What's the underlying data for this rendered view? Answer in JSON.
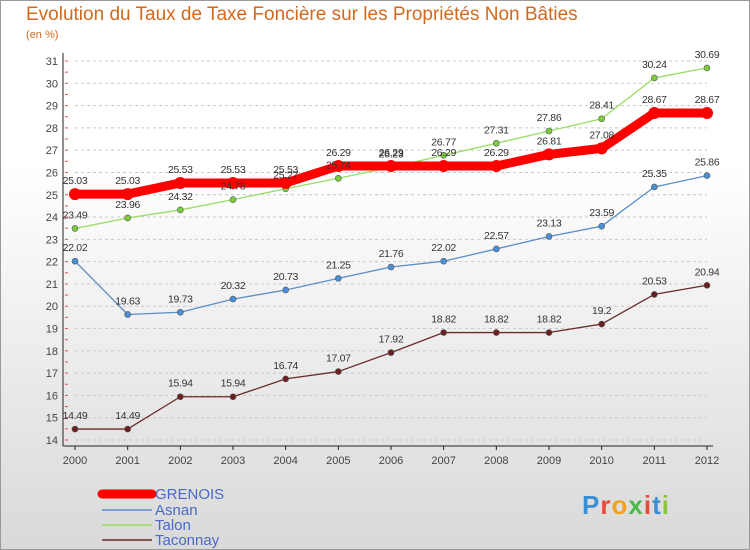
{
  "title": "Evolution du Taux de Taxe Foncière sur les Propriétés Non Bâties",
  "subtitle": "(en %)",
  "logo": {
    "text": "Proxiti",
    "colors": [
      "#3b8fd6",
      "#e84b3a",
      "#f2a21b",
      "#4cb848",
      "#e84b3a",
      "#3b8fd6",
      "#8cc63f"
    ]
  },
  "chart_data": {
    "type": "line",
    "title": "Evolution du Taux de Taxe Foncière sur les Propriétés Non Bâties",
    "ylabel": "(en %)",
    "x": [
      "2000",
      "2001",
      "2002",
      "2003",
      "2004",
      "2005",
      "2006",
      "2007",
      "2008",
      "2009",
      "2010",
      "2011",
      "2012"
    ],
    "ylim": [
      14,
      31
    ],
    "yticks": [
      14,
      15,
      16,
      17,
      18,
      19,
      20,
      21,
      22,
      23,
      24,
      25,
      26,
      27,
      28,
      29,
      30,
      31
    ],
    "grid": "horizontal dashed",
    "legend_position": "bottom-left",
    "series": [
      {
        "name": "GRENOIS",
        "color": "#ff0000",
        "width": 9,
        "values": [
          25.03,
          25.03,
          25.53,
          25.53,
          25.53,
          26.29,
          26.29,
          26.29,
          26.29,
          26.81,
          27.08,
          28.67,
          28.67
        ],
        "labels": [
          "25.03",
          "25.03",
          "25.53",
          "25.53",
          "25.53",
          "26.29",
          "26.29",
          "26.29",
          "26.29",
          "26.81",
          "27.08",
          "28.67",
          "28.67"
        ]
      },
      {
        "name": "Asnan",
        "color": "#5b8fc7",
        "marker": "#4a90d9",
        "width": 1.3,
        "values": [
          22.02,
          19.63,
          19.73,
          20.32,
          20.73,
          21.25,
          21.76,
          22.02,
          22.57,
          23.13,
          23.59,
          25.35,
          25.86
        ],
        "labels": [
          "22.02",
          "19.63",
          "19.73",
          "20.32",
          "20.73",
          "21.25",
          "21.76",
          "22.02",
          "22.57",
          "23.13",
          "23.59",
          "25.35",
          "25.86"
        ]
      },
      {
        "name": "Talon",
        "color": "#99dd66",
        "marker": "#7ccd3c",
        "width": 1.3,
        "values": [
          23.49,
          23.96,
          24.32,
          24.78,
          25.27,
          25.74,
          26.23,
          26.77,
          27.31,
          27.86,
          28.41,
          30.24,
          30.69
        ],
        "labels": [
          "23.49",
          "23.96",
          "24.32",
          "24.78",
          "25.27",
          "25.74",
          "26.23",
          "26.77",
          "27.31",
          "27.86",
          "28.41",
          "30.24",
          "30.69"
        ]
      },
      {
        "name": "Taconnay",
        "color": "#6b2b2b",
        "marker": "#6b1f1f",
        "width": 1.3,
        "values": [
          14.49,
          14.49,
          15.94,
          15.94,
          16.74,
          17.07,
          17.92,
          18.82,
          18.82,
          18.82,
          19.2,
          20.53,
          20.94
        ],
        "labels": [
          "14.49",
          "14.49",
          "15.94",
          "15.94",
          "16.74",
          "17.07",
          "17.92",
          "18.82",
          "18.82",
          "18.82",
          "19.2",
          "20.53",
          "20.94"
        ]
      }
    ]
  }
}
